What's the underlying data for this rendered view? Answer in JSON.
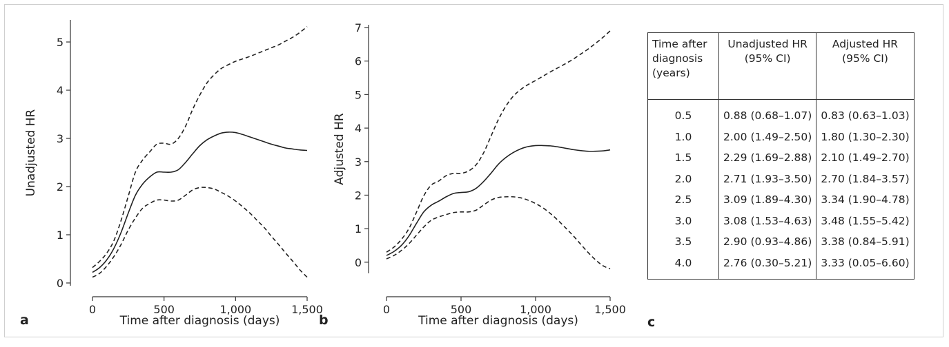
{
  "panel_labels": {
    "a": "a",
    "b": "b",
    "c": "c"
  },
  "chart_data": [
    {
      "type": "line",
      "panel": "a",
      "xlabel": "Time after diagnosis (days)",
      "ylabel": "Unadjusted HR",
      "xlim": [
        0,
        1500
      ],
      "ylim": [
        0,
        5.4
      ],
      "xticks": [
        0,
        500,
        1000,
        1500
      ],
      "xtick_labels": [
        "0",
        "500",
        "1,000",
        "1,500"
      ],
      "yticks": [
        0,
        1,
        2,
        3,
        4,
        5
      ],
      "ytick_labels": [
        "0",
        "1",
        "2",
        "3",
        "4",
        "5"
      ],
      "grid": false,
      "series": [
        {
          "style": "solid",
          "x": [
            0,
            50,
            100,
            150,
            200,
            250,
            300,
            350,
            400,
            450,
            500,
            550,
            600,
            650,
            700,
            750,
            800,
            850,
            900,
            950,
            1000,
            1050,
            1100,
            1150,
            1200,
            1250,
            1300,
            1350,
            1400,
            1450,
            1500
          ],
          "y": [
            0.22,
            0.32,
            0.48,
            0.72,
            1.05,
            1.45,
            1.82,
            2.05,
            2.2,
            2.3,
            2.3,
            2.3,
            2.35,
            2.5,
            2.68,
            2.85,
            2.97,
            3.05,
            3.11,
            3.13,
            3.12,
            3.08,
            3.03,
            2.98,
            2.93,
            2.88,
            2.84,
            2.8,
            2.78,
            2.76,
            2.75
          ]
        },
        {
          "style": "dashed",
          "x": [
            0,
            50,
            100,
            150,
            200,
            250,
            300,
            350,
            400,
            450,
            500,
            550,
            600,
            650,
            700,
            750,
            800,
            850,
            900,
            950,
            1000,
            1050,
            1100,
            1150,
            1200,
            1250,
            1300,
            1350,
            1400,
            1450,
            1500
          ],
          "y": [
            0.32,
            0.45,
            0.62,
            0.88,
            1.3,
            1.8,
            2.3,
            2.55,
            2.72,
            2.88,
            2.9,
            2.88,
            3.0,
            3.25,
            3.6,
            3.9,
            4.15,
            4.32,
            4.45,
            4.53,
            4.6,
            4.65,
            4.7,
            4.76,
            4.82,
            4.88,
            4.94,
            5.02,
            5.1,
            5.2,
            5.32
          ]
        },
        {
          "style": "dashed",
          "x": [
            0,
            50,
            100,
            150,
            200,
            250,
            300,
            350,
            400,
            450,
            500,
            550,
            600,
            650,
            700,
            750,
            800,
            850,
            900,
            950,
            1000,
            1050,
            1100,
            1150,
            1200,
            1250,
            1300,
            1350,
            1400,
            1450,
            1500
          ],
          "y": [
            0.12,
            0.2,
            0.35,
            0.55,
            0.8,
            1.1,
            1.35,
            1.55,
            1.65,
            1.72,
            1.72,
            1.7,
            1.72,
            1.82,
            1.93,
            1.98,
            1.98,
            1.95,
            1.88,
            1.8,
            1.7,
            1.58,
            1.45,
            1.3,
            1.15,
            0.97,
            0.8,
            0.62,
            0.45,
            0.27,
            0.12
          ]
        }
      ]
    },
    {
      "type": "line",
      "panel": "b",
      "xlabel": "Time after diagnosis (days)",
      "ylabel": "Adjusted HR",
      "xlim": [
        0,
        1500
      ],
      "ylim": [
        -0.25,
        7
      ],
      "xticks": [
        0,
        500,
        1000,
        1500
      ],
      "xtick_labels": [
        "0",
        "500",
        "1,000",
        "1,500"
      ],
      "yticks": [
        0,
        1,
        2,
        3,
        4,
        5,
        6,
        7
      ],
      "ytick_labels": [
        "0",
        "1",
        "2",
        "3",
        "4",
        "5",
        "6",
        "7"
      ],
      "grid": false,
      "series": [
        {
          "style": "solid",
          "x": [
            0,
            50,
            100,
            150,
            200,
            250,
            300,
            350,
            400,
            450,
            500,
            550,
            600,
            650,
            700,
            750,
            800,
            850,
            900,
            950,
            1000,
            1050,
            1100,
            1150,
            1200,
            1250,
            1300,
            1350,
            1400,
            1450,
            1500
          ],
          "y": [
            0.2,
            0.32,
            0.5,
            0.78,
            1.15,
            1.5,
            1.7,
            1.82,
            1.95,
            2.05,
            2.08,
            2.1,
            2.2,
            2.4,
            2.65,
            2.92,
            3.12,
            3.27,
            3.38,
            3.45,
            3.48,
            3.48,
            3.47,
            3.44,
            3.4,
            3.36,
            3.33,
            3.31,
            3.31,
            3.32,
            3.35
          ]
        },
        {
          "style": "dashed",
          "x": [
            0,
            50,
            100,
            150,
            200,
            250,
            300,
            350,
            400,
            450,
            500,
            550,
            600,
            650,
            700,
            750,
            800,
            850,
            900,
            950,
            1000,
            1050,
            1100,
            1150,
            1200,
            1250,
            1300,
            1350,
            1400,
            1450,
            1500
          ],
          "y": [
            0.3,
            0.45,
            0.68,
            1.0,
            1.48,
            1.98,
            2.3,
            2.42,
            2.58,
            2.65,
            2.65,
            2.72,
            2.9,
            3.25,
            3.75,
            4.25,
            4.65,
            4.95,
            5.15,
            5.3,
            5.42,
            5.55,
            5.68,
            5.8,
            5.92,
            6.05,
            6.2,
            6.35,
            6.52,
            6.7,
            6.9
          ]
        },
        {
          "style": "dashed",
          "x": [
            0,
            50,
            100,
            150,
            200,
            250,
            300,
            350,
            400,
            450,
            500,
            550,
            600,
            650,
            700,
            750,
            800,
            850,
            900,
            950,
            1000,
            1050,
            1100,
            1150,
            1200,
            1250,
            1300,
            1350,
            1400,
            1450,
            1500
          ],
          "y": [
            0.1,
            0.2,
            0.35,
            0.55,
            0.8,
            1.05,
            1.25,
            1.35,
            1.42,
            1.48,
            1.5,
            1.5,
            1.55,
            1.7,
            1.85,
            1.93,
            1.95,
            1.95,
            1.92,
            1.85,
            1.75,
            1.62,
            1.45,
            1.25,
            1.03,
            0.8,
            0.55,
            0.3,
            0.08,
            -0.1,
            -0.2
          ]
        }
      ]
    },
    {
      "type": "table",
      "panel": "c",
      "columns": [
        "Time after diagnosis (years)",
        "Unadjusted HR (95% CI)",
        "Adjusted HR (95% CI)"
      ],
      "rows": [
        [
          "0.5",
          "0.88 (0.68–1.07)",
          "0.83 (0.63–1.03)"
        ],
        [
          "1.0",
          "2.00 (1.49–2.50)",
          "1.80 (1.30–2.30)"
        ],
        [
          "1.5",
          "2.29 (1.69–2.88)",
          "2.10 (1.49–2.70)"
        ],
        [
          "2.0",
          "2.71 (1.93–3.50)",
          "2.70 (1.84–3.57)"
        ],
        [
          "2.5",
          "3.09 (1.89–4.30)",
          "3.34 (1.90–4.78)"
        ],
        [
          "3.0",
          "3.08 (1.53–4.63)",
          "3.48 (1.55–5.42)"
        ],
        [
          "3.5",
          "2.90 (0.93–4.86)",
          "3.38 (0.84–5.91)"
        ],
        [
          "4.0",
          "2.76 (0.30–5.21)",
          "3.33 (0.05–6.60)"
        ]
      ]
    }
  ],
  "table_header": {
    "time": [
      "Time after",
      "diagnosis",
      "(years)"
    ],
    "unadjusted": [
      "Unadjusted HR",
      "(95% CI)"
    ],
    "adjusted": [
      "Adjusted HR",
      "(95% CI)"
    ]
  }
}
